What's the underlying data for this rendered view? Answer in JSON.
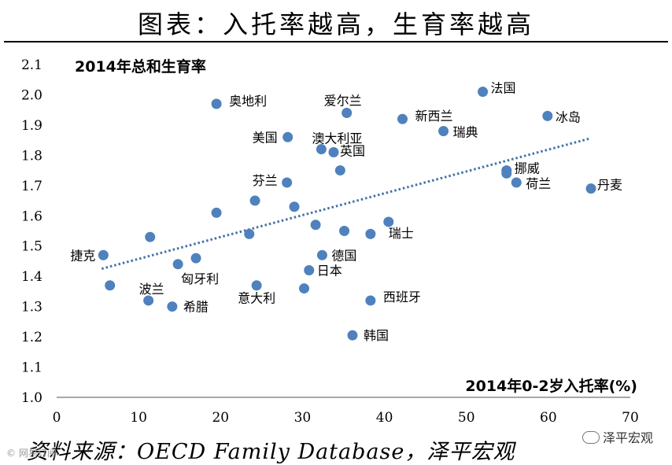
{
  "page": {
    "title": "图表：入托率越高，生育率越高",
    "source": "资料来源：OECD Family Database，泽平宏观",
    "watermark": "泽平宏观",
    "logo_left": "© 网易订阅"
  },
  "chart_data": {
    "type": "scatter",
    "title": "",
    "ylabel": "2014年总和生育率",
    "xlabel": "2014年0-2岁入托率(%)",
    "xlim": [
      0,
      70
    ],
    "ylim": [
      1.0,
      2.1
    ],
    "xticks": [
      0,
      10,
      20,
      30,
      40,
      50,
      60,
      70
    ],
    "yticks": [
      "1.0",
      "1.1",
      "1.2",
      "1.3",
      "1.4",
      "1.5",
      "1.6",
      "1.7",
      "1.8",
      "1.9",
      "2.0",
      "2.1"
    ],
    "points": [
      {
        "x": 19.5,
        "y": 1.97,
        "label": "奥地利"
      },
      {
        "x": 35.4,
        "y": 1.94,
        "label": "爱尔兰"
      },
      {
        "x": 52.0,
        "y": 2.01,
        "label": "法国"
      },
      {
        "x": 42.2,
        "y": 1.92,
        "label": "新西兰"
      },
      {
        "x": 59.9,
        "y": 1.93,
        "label": "冰岛"
      },
      {
        "x": 28.2,
        "y": 1.86,
        "label": "美国"
      },
      {
        "x": 47.2,
        "y": 1.88,
        "label": "瑞典"
      },
      {
        "x": 32.3,
        "y": 1.82,
        "label": "澳大利亚"
      },
      {
        "x": 33.8,
        "y": 1.81,
        "label": "英国"
      },
      {
        "x": 34.6,
        "y": 1.75,
        "label": ""
      },
      {
        "x": 54.9,
        "y": 1.75,
        "label": "挪威"
      },
      {
        "x": 54.9,
        "y": 1.74,
        "label": ""
      },
      {
        "x": 56.1,
        "y": 1.71,
        "label": "荷兰"
      },
      {
        "x": 65.2,
        "y": 1.69,
        "label": "丹麦"
      },
      {
        "x": 28.1,
        "y": 1.71,
        "label": "芬兰"
      },
      {
        "x": 24.2,
        "y": 1.65,
        "label": ""
      },
      {
        "x": 29.0,
        "y": 1.63,
        "label": ""
      },
      {
        "x": 19.5,
        "y": 1.61,
        "label": ""
      },
      {
        "x": 31.6,
        "y": 1.57,
        "label": ""
      },
      {
        "x": 40.5,
        "y": 1.58,
        "label": "瑞士"
      },
      {
        "x": 35.1,
        "y": 1.55,
        "label": ""
      },
      {
        "x": 38.3,
        "y": 1.54,
        "label": ""
      },
      {
        "x": 23.5,
        "y": 1.54,
        "label": ""
      },
      {
        "x": 11.4,
        "y": 1.53,
        "label": ""
      },
      {
        "x": 5.7,
        "y": 1.47,
        "label": "捷克"
      },
      {
        "x": 32.4,
        "y": 1.47,
        "label": "德国"
      },
      {
        "x": 17.0,
        "y": 1.46,
        "label": ""
      },
      {
        "x": 14.8,
        "y": 1.44,
        "label": "匈牙利"
      },
      {
        "x": 30.8,
        "y": 1.42,
        "label": "日本"
      },
      {
        "x": 6.5,
        "y": 1.37,
        "label": ""
      },
      {
        "x": 24.4,
        "y": 1.37,
        "label": "意大利"
      },
      {
        "x": 30.2,
        "y": 1.36,
        "label": ""
      },
      {
        "x": 11.2,
        "y": 1.32,
        "label": "波兰"
      },
      {
        "x": 38.3,
        "y": 1.32,
        "label": "西班牙"
      },
      {
        "x": 14.1,
        "y": 1.3,
        "label": "希腊"
      },
      {
        "x": 36.1,
        "y": 1.205,
        "label": "韩国"
      }
    ],
    "trendline": {
      "style": "dotted",
      "x": [
        5.5,
        65.0
      ],
      "y": [
        1.425,
        1.855
      ]
    },
    "colors": {
      "point": "#4f81bd",
      "trend": "#4572a7",
      "axis": "#8c8c8c",
      "text": "#000000"
    }
  }
}
